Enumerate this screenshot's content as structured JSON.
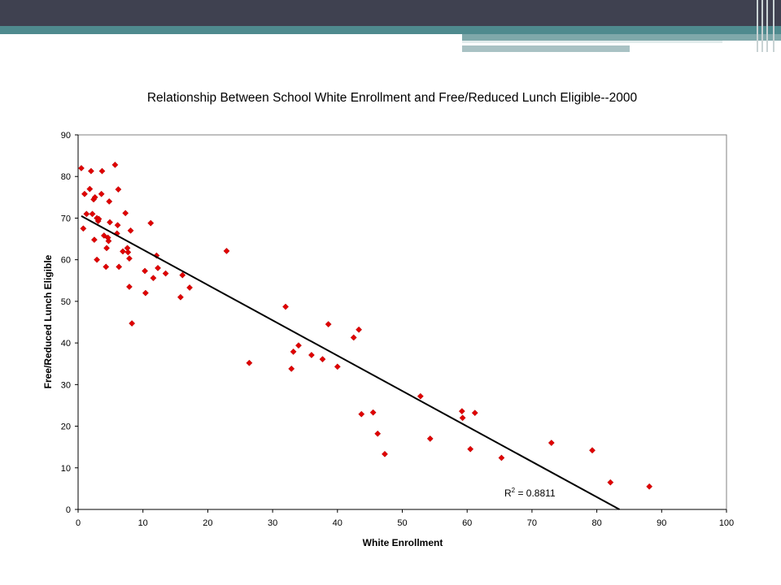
{
  "chart_data": {
    "type": "scatter",
    "title": "Relationship Between School White Enrollment and Free/Reduced Lunch Eligible--2000",
    "xlabel": "White Enrollment",
    "ylabel": "Free/Reduced Lunch Eligible",
    "xlim": [
      0,
      100
    ],
    "ylim": [
      0,
      90
    ],
    "xticks": [
      0,
      10,
      20,
      30,
      40,
      50,
      60,
      70,
      80,
      90,
      100
    ],
    "yticks": [
      0,
      10,
      20,
      30,
      40,
      50,
      60,
      70,
      80,
      90
    ],
    "grid": false,
    "point_color": "#e00000",
    "trendline": {
      "x": [
        0.5,
        83.5
      ],
      "y": [
        70.5,
        0
      ],
      "color": "#000000"
    },
    "annotation": {
      "text": "R",
      "superscript": "2",
      "rest": " = 0.8811"
    },
    "points": [
      {
        "x": 0.5,
        "y": 82
      },
      {
        "x": 1.0,
        "y": 75.8
      },
      {
        "x": 0.8,
        "y": 67.5
      },
      {
        "x": 1.3,
        "y": 71
      },
      {
        "x": 1.8,
        "y": 77
      },
      {
        "x": 2.0,
        "y": 81.3
      },
      {
        "x": 2.2,
        "y": 71
      },
      {
        "x": 2.4,
        "y": 74.5
      },
      {
        "x": 2.6,
        "y": 75
      },
      {
        "x": 2.5,
        "y": 64.8
      },
      {
        "x": 2.9,
        "y": 70
      },
      {
        "x": 3.1,
        "y": 69.3
      },
      {
        "x": 3.2,
        "y": 69.8
      },
      {
        "x": 2.9,
        "y": 60
      },
      {
        "x": 3.6,
        "y": 75.8
      },
      {
        "x": 3.7,
        "y": 81.3
      },
      {
        "x": 4.0,
        "y": 65.8
      },
      {
        "x": 4.3,
        "y": 58.3
      },
      {
        "x": 4.4,
        "y": 62.8
      },
      {
        "x": 4.7,
        "y": 64.5
      },
      {
        "x": 4.9,
        "y": 69
      },
      {
        "x": 4.8,
        "y": 74
      },
      {
        "x": 4.6,
        "y": 65.3
      },
      {
        "x": 5.7,
        "y": 82.8
      },
      {
        "x": 6.1,
        "y": 68.3
      },
      {
        "x": 6.2,
        "y": 76.9
      },
      {
        "x": 6.0,
        "y": 66.3
      },
      {
        "x": 6.3,
        "y": 58.3
      },
      {
        "x": 6.9,
        "y": 62
      },
      {
        "x": 7.3,
        "y": 71.2
      },
      {
        "x": 7.6,
        "y": 62.8
      },
      {
        "x": 7.7,
        "y": 61.8
      },
      {
        "x": 7.9,
        "y": 60.3
      },
      {
        "x": 8.1,
        "y": 67
      },
      {
        "x": 7.9,
        "y": 53.5
      },
      {
        "x": 8.3,
        "y": 44.7
      },
      {
        "x": 10.3,
        "y": 57.3
      },
      {
        "x": 10.4,
        "y": 52
      },
      {
        "x": 11.2,
        "y": 68.8
      },
      {
        "x": 11.6,
        "y": 55.6
      },
      {
        "x": 12.1,
        "y": 61
      },
      {
        "x": 12.3,
        "y": 58
      },
      {
        "x": 13.5,
        "y": 56.7
      },
      {
        "x": 15.8,
        "y": 51
      },
      {
        "x": 16.1,
        "y": 56.3
      },
      {
        "x": 17.2,
        "y": 53.3
      },
      {
        "x": 22.9,
        "y": 62.1
      },
      {
        "x": 26.4,
        "y": 35.2
      },
      {
        "x": 32.0,
        "y": 48.7
      },
      {
        "x": 32.9,
        "y": 33.8
      },
      {
        "x": 33.2,
        "y": 37.9
      },
      {
        "x": 34.0,
        "y": 39.4
      },
      {
        "x": 36.0,
        "y": 37.1
      },
      {
        "x": 37.7,
        "y": 36.1
      },
      {
        "x": 38.6,
        "y": 44.5
      },
      {
        "x": 40.0,
        "y": 34.3
      },
      {
        "x": 42.5,
        "y": 41.3
      },
      {
        "x": 43.3,
        "y": 43.2
      },
      {
        "x": 43.7,
        "y": 22.9
      },
      {
        "x": 45.5,
        "y": 23.3
      },
      {
        "x": 46.2,
        "y": 18.2
      },
      {
        "x": 47.3,
        "y": 13.3
      },
      {
        "x": 52.8,
        "y": 27.2
      },
      {
        "x": 54.3,
        "y": 17
      },
      {
        "x": 59.2,
        "y": 23.6
      },
      {
        "x": 59.3,
        "y": 22
      },
      {
        "x": 60.5,
        "y": 14.5
      },
      {
        "x": 61.2,
        "y": 23.2
      },
      {
        "x": 65.3,
        "y": 12.4
      },
      {
        "x": 73.0,
        "y": 16
      },
      {
        "x": 79.3,
        "y": 14.2
      },
      {
        "x": 82.1,
        "y": 6.5
      },
      {
        "x": 88.1,
        "y": 5.5
      }
    ]
  }
}
